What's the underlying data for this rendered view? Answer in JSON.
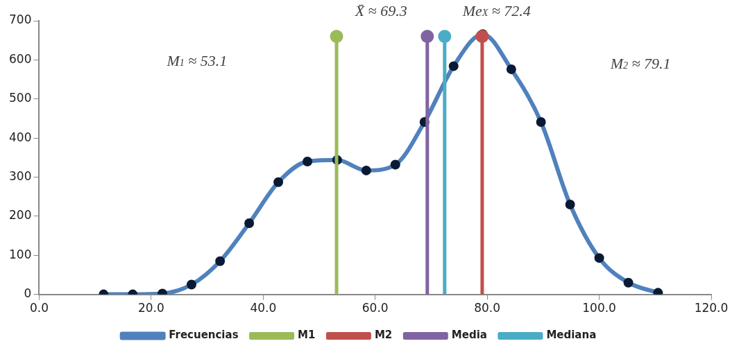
{
  "chart_data": {
    "type": "line",
    "xlim": [
      0,
      120
    ],
    "xticks": [
      {
        "value": 0,
        "label": "0.0"
      },
      {
        "value": 20,
        "label": "20.0"
      },
      {
        "value": 40,
        "label": "40.0"
      },
      {
        "value": 60,
        "label": "60.0"
      },
      {
        "value": 80,
        "label": "80.0"
      },
      {
        "value": 100,
        "label": "100.0"
      },
      {
        "value": 120,
        "label": "120.0"
      }
    ],
    "ylim": [
      0,
      700
    ],
    "yticks": [
      0,
      100,
      200,
      300,
      400,
      500,
      600,
      700
    ],
    "grid": false,
    "legend": "bottom",
    "marker": "circle",
    "line_style": "solid",
    "series": [
      {
        "name": "Frecuencias",
        "color": "#4f81bd",
        "x": [
          11.5,
          16.7,
          22.0,
          27.2,
          32.3,
          37.5,
          42.7,
          47.9,
          53.2,
          58.4,
          63.6,
          68.8,
          74.0,
          79.2,
          84.3,
          89.6,
          94.8,
          100.0,
          105.2,
          110.5
        ],
        "values": [
          0,
          0,
          2,
          25,
          85,
          182,
          287,
          340,
          344,
          317,
          332,
          441,
          584,
          666,
          576,
          441,
          230,
          93,
          30,
          4
        ]
      },
      {
        "name": "M1",
        "color": "#9bbb59",
        "x": [
          53.1,
          53.1
        ],
        "values": [
          0,
          660
        ]
      },
      {
        "name": "M2",
        "color": "#c0504d",
        "x": [
          79.1,
          79.1
        ],
        "values": [
          0,
          660
        ]
      },
      {
        "name": "Media",
        "color": "#8064a2",
        "x": [
          69.3,
          69.3
        ],
        "values": [
          0,
          660
        ]
      },
      {
        "name": "Mediana",
        "color": "#4bacc6",
        "x": [
          72.4,
          72.4
        ],
        "values": [
          0,
          660
        ]
      }
    ],
    "annotations": [
      "M$_{1}$ ≈ 53.1",
      "X̄ ≈ 69.3",
      "Me$_{X}$ ≈ 72.4",
      "M$_{2}$ ≈ 79.1"
    ]
  }
}
